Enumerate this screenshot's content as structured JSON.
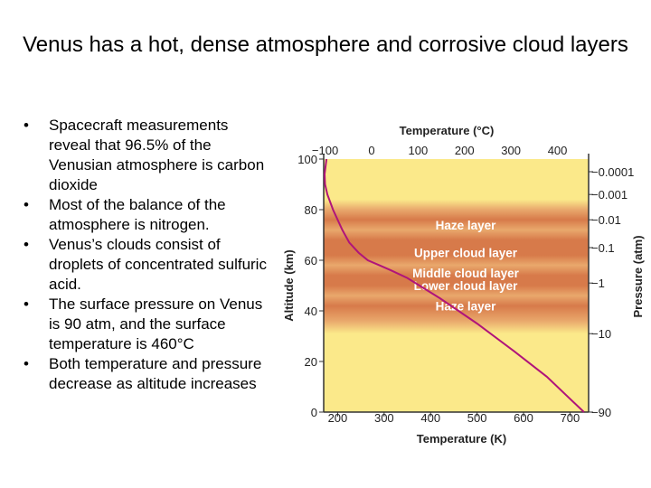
{
  "slide": {
    "title": "Venus has a hot, dense atmosphere and corrosive cloud layers",
    "bullets": [
      "Spacecraft measurements reveal that 96.5% of the Venusian atmosphere is carbon dioxide",
      "Most of the balance of the atmosphere is nitrogen.",
      "Venus’s clouds consist of droplets of concentrated sulfuric acid.",
      "The surface pressure on Venus is 90 atm, and the surface temperature is 460°C",
      "Both temperature and pressure decrease as altitude increases"
    ]
  },
  "chart_data": {
    "type": "line",
    "title": "",
    "top_axis_label": "Temperature (°C)",
    "top_ticks": [
      -100,
      0,
      100,
      200,
      300,
      400
    ],
    "xlabel": "Temperature (K)",
    "x_ticks": [
      200,
      300,
      400,
      500,
      600,
      700
    ],
    "xlim": [
      170,
      740
    ],
    "ylabel": "Altitude (km)",
    "y_ticks": [
      0,
      20,
      40,
      60,
      80,
      100
    ],
    "ylim": [
      0,
      100
    ],
    "right_axis_label": "Pressure (atm)",
    "pressure_ticks": [
      {
        "label": "0.0001",
        "altitude": 95
      },
      {
        "label": "0.001",
        "altitude": 86
      },
      {
        "label": "0.01",
        "altitude": 76
      },
      {
        "label": "0.1",
        "altitude": 65
      },
      {
        "label": "1",
        "altitude": 51
      },
      {
        "label": "10",
        "altitude": 31
      },
      {
        "label": "90",
        "altitude": 0
      }
    ],
    "layers": [
      {
        "name": "Haze layer",
        "altitude": 74
      },
      {
        "name": "Upper cloud layer",
        "altitude": 63
      },
      {
        "name": "Middle cloud layer",
        "altitude": 55
      },
      {
        "name": "Lower cloud layer",
        "altitude": 50
      },
      {
        "name": "Haze layer",
        "altitude": 42
      }
    ],
    "series": [
      {
        "color": "#b0147a",
        "x": [
          176,
          172,
          173,
          178,
          190,
          210,
          225,
          245,
          265,
          290,
          315,
          350,
          420,
          500,
          580,
          650,
          730
        ],
        "y": [
          100,
          94,
          90,
          86,
          80,
          72,
          67,
          63,
          60,
          58,
          56,
          53,
          45,
          35,
          24,
          14,
          0
        ]
      }
    ],
    "grid": false,
    "band_colors": {
      "background": "#fbe98a",
      "haze": "#e9a86c",
      "cloud": "#d77a4a"
    }
  }
}
